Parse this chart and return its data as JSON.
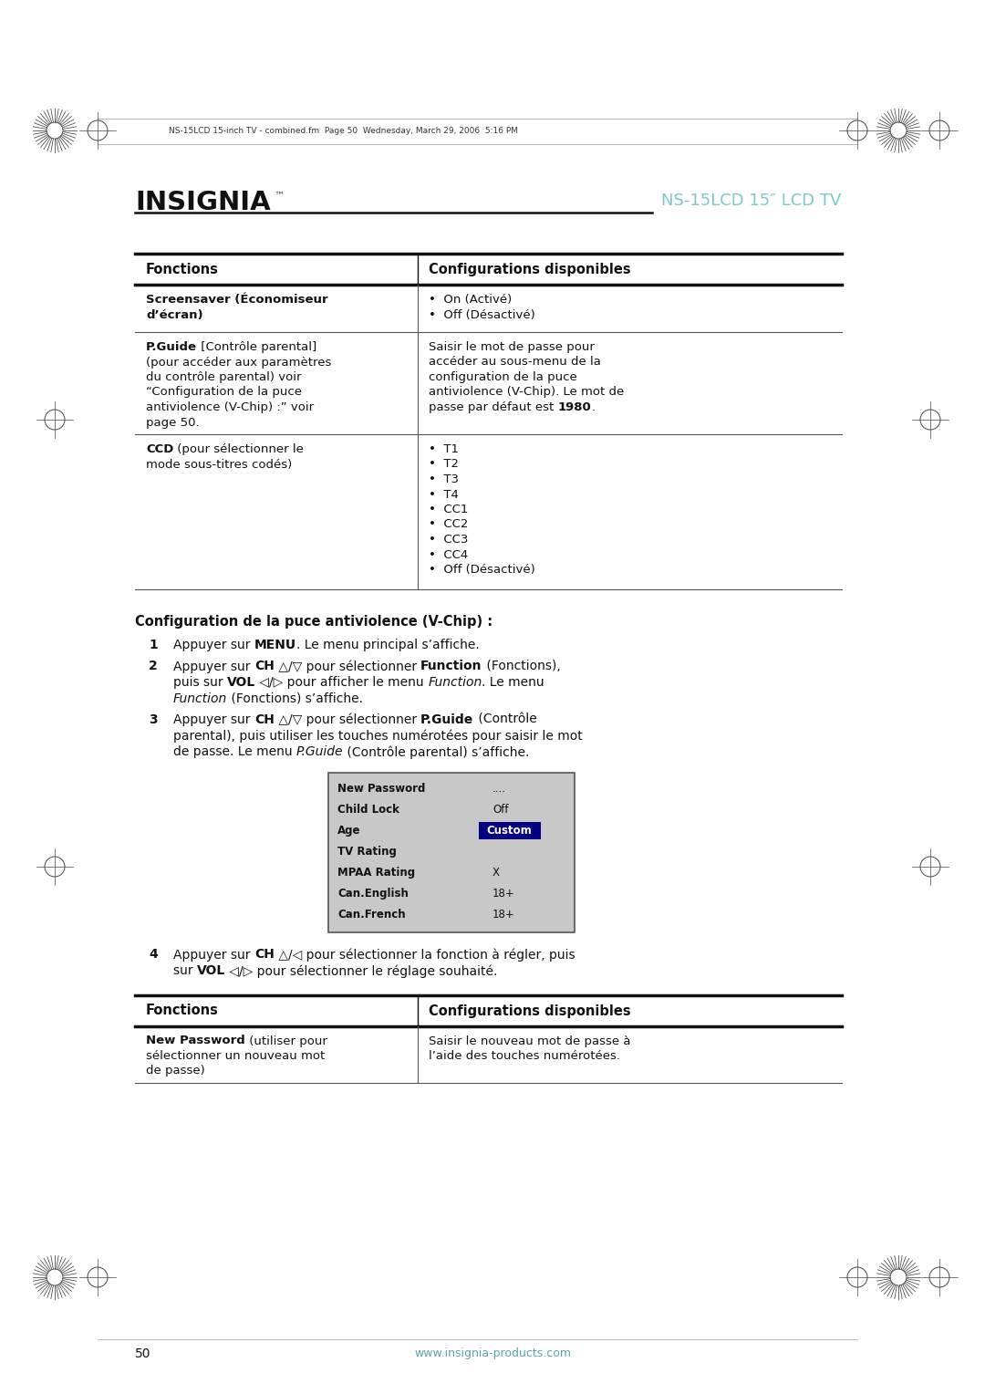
{
  "page_bg": "#ffffff",
  "header_line_text": "NS-15LCD 15-inch TV - combined.fm  Page 50  Wednesday, March 29, 2006  5:16 PM",
  "brand": "INSIGNIA",
  "page_title_right": "NS-15LCD 15\" LCD TV",
  "page_title_color": "#7ec8c8",
  "table1_headers": [
    "Fonctions",
    "Configurations disponibles"
  ],
  "section_title": "Configuration de la puce antiviolence (V-Chip) :",
  "menu_box_rows": [
    {
      "label": "New Password",
      "value": "...."
    },
    {
      "label": "Child Lock",
      "value": "Off"
    },
    {
      "label": "Age",
      "value": "Custom",
      "highlight": true
    },
    {
      "label": "TV Rating",
      "value": ""
    },
    {
      "label": "MPAA Rating",
      "value": "X"
    },
    {
      "label": "Can.English",
      "value": "18+"
    },
    {
      "label": "Can.French",
      "value": "18+"
    }
  ],
  "menu_bg": "#c8c8c8",
  "menu_highlight_color": "#000080",
  "table2_headers": [
    "Fonctions",
    "Configurations disponibles"
  ],
  "footer_text": "www.insignia-products.com",
  "footer_page": "50",
  "footer_color": "#5ba3b0"
}
